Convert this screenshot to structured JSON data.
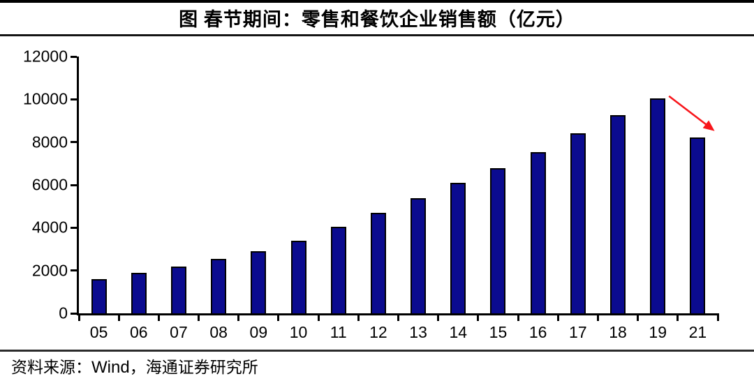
{
  "header": {
    "title": "图 春节期间：零售和餐饮企业销售额（亿元）"
  },
  "footer": {
    "prefix": "资料来源：",
    "wind": "Wind",
    "suffix": "，海通证券研究所"
  },
  "colors": {
    "bar_fill": "#0b0b8f",
    "bar_border": "#000000",
    "axis": "#000000",
    "arrow": "#f8161b",
    "background": "#ffffff"
  },
  "chart_data": {
    "type": "bar",
    "title": "图 春节期间：零售和餐饮企业销售额（亿元）",
    "categories": [
      "05",
      "06",
      "07",
      "08",
      "09",
      "10",
      "11",
      "12",
      "13",
      "14",
      "15",
      "16",
      "17",
      "18",
      "19",
      "21"
    ],
    "values": [
      1600,
      1900,
      2200,
      2550,
      2900,
      3400,
      4045,
      4700,
      5390,
      6107,
      6780,
      7540,
      8400,
      9260,
      10050,
      8210
    ],
    "xlabel": "",
    "ylabel": "",
    "ylim": [
      0,
      12000
    ],
    "yticks": [
      0,
      2000,
      4000,
      6000,
      8000,
      10000,
      12000
    ],
    "grid": false,
    "legend": "none",
    "bar_color": "#0b0b8f",
    "annotations": [
      {
        "type": "arrow",
        "color": "#f8161b",
        "from": {
          "category": "19",
          "value": 10150,
          "dx": 16
        },
        "to": {
          "category": "21",
          "value": 8600,
          "dx": 21
        }
      }
    ]
  }
}
